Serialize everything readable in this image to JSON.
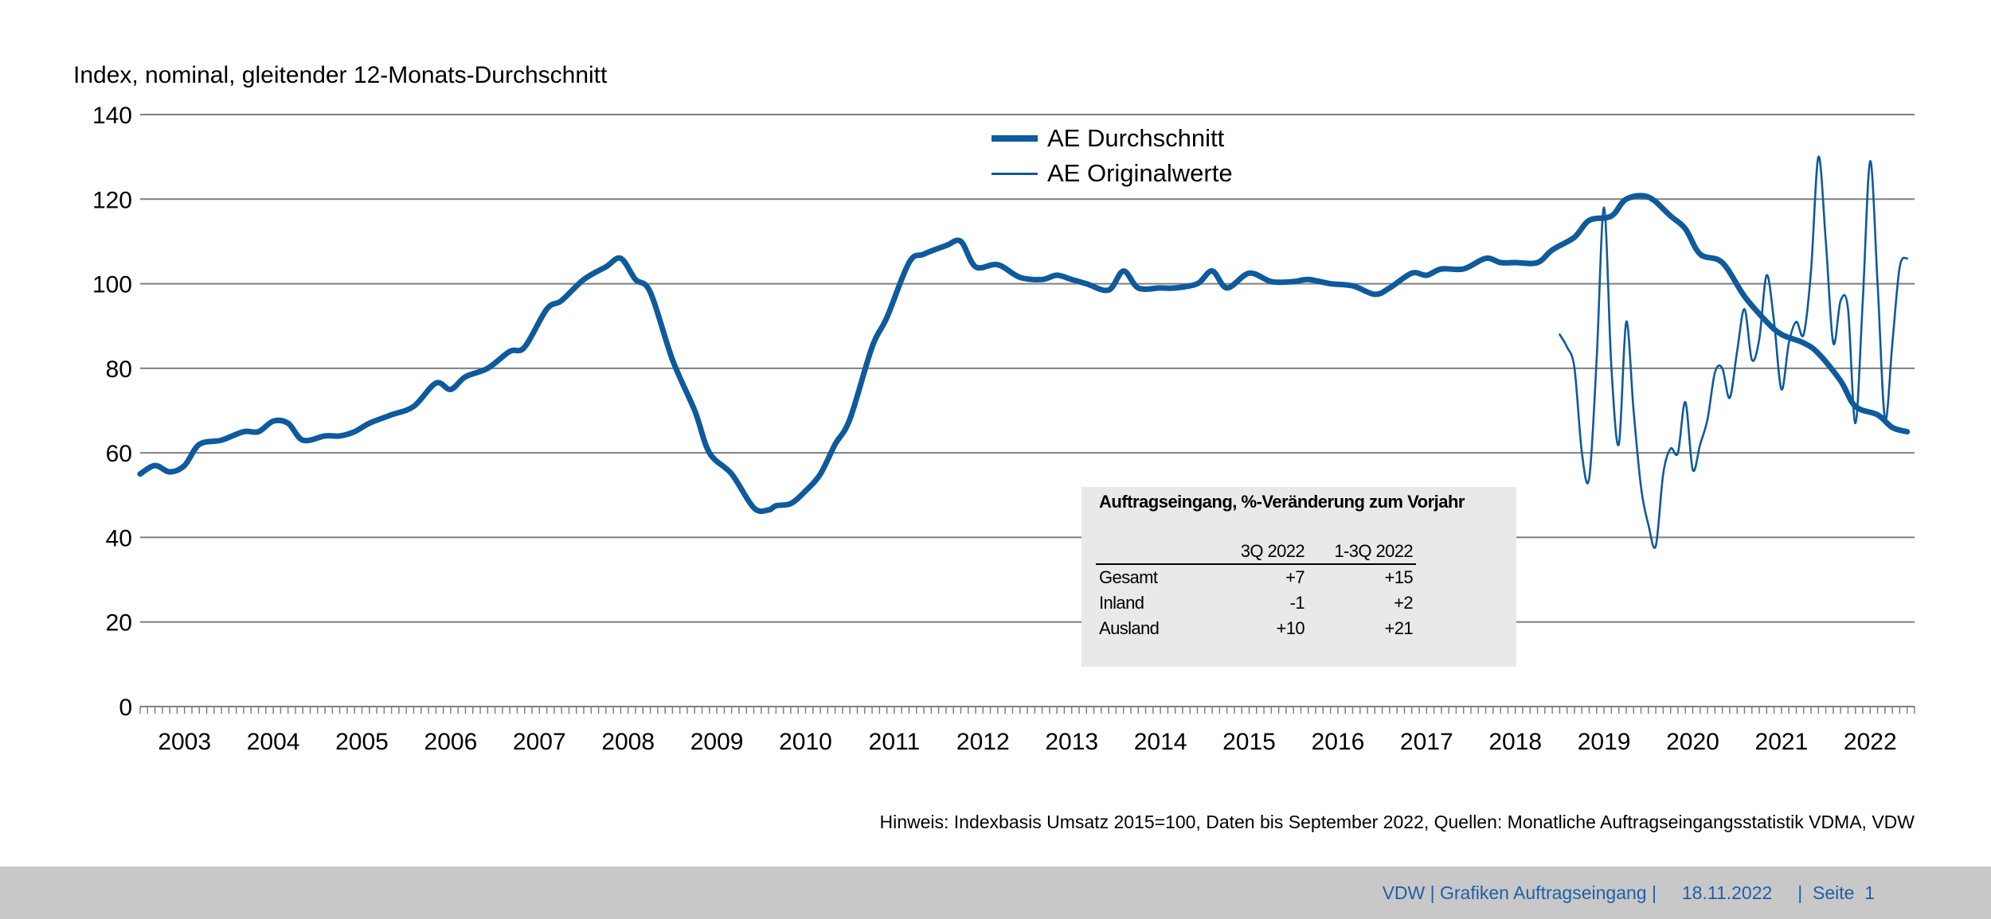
{
  "chart_data": {
    "type": "line",
    "title": "",
    "ylabel": "Index, nominal, gleitender 12-Monats-Durchschnitt",
    "xlabel": "",
    "ylim": [
      0,
      140
    ],
    "yticks": [
      0,
      20,
      40,
      60,
      80,
      100,
      120,
      140
    ],
    "x_tick_labels": [
      "2003",
      "2004",
      "2005",
      "2006",
      "2007",
      "2008",
      "2009",
      "2010",
      "2011",
      "2012",
      "2013",
      "2014",
      "2015",
      "2016",
      "2017",
      "2018",
      "2019",
      "2020",
      "2021",
      "2022"
    ],
    "x_range": [
      "2003-01",
      "2022-12"
    ],
    "grid": "horizontal",
    "legend_position": "top-center",
    "series": [
      {
        "name": "AE Durchschnitt",
        "style": "thick",
        "points": [
          [
            "2003-01",
            55
          ],
          [
            "2003-03",
            57
          ],
          [
            "2003-05",
            55.5
          ],
          [
            "2003-07",
            57
          ],
          [
            "2003-09",
            62
          ],
          [
            "2003-12",
            63
          ],
          [
            "2004-03",
            65
          ],
          [
            "2004-05",
            65
          ],
          [
            "2004-07",
            67.5
          ],
          [
            "2004-09",
            67
          ],
          [
            "2004-11",
            63
          ],
          [
            "2005-02",
            64
          ],
          [
            "2005-04",
            64
          ],
          [
            "2005-06",
            65
          ],
          [
            "2005-08",
            67
          ],
          [
            "2005-11",
            69
          ],
          [
            "2006-02",
            71
          ],
          [
            "2006-05",
            76.5
          ],
          [
            "2006-07",
            75
          ],
          [
            "2006-09",
            78
          ],
          [
            "2006-12",
            80
          ],
          [
            "2007-03",
            84
          ],
          [
            "2007-05",
            85
          ],
          [
            "2007-08",
            94
          ],
          [
            "2007-10",
            96
          ],
          [
            "2008-01",
            101
          ],
          [
            "2008-04",
            104
          ],
          [
            "2008-06",
            106
          ],
          [
            "2008-08",
            101
          ],
          [
            "2008-10",
            98
          ],
          [
            "2009-01",
            82
          ],
          [
            "2009-04",
            70
          ],
          [
            "2009-06",
            60
          ],
          [
            "2009-09",
            55
          ],
          [
            "2009-12",
            47
          ],
          [
            "2010-02",
            46.5
          ],
          [
            "2010-03",
            47.5
          ],
          [
            "2010-05",
            48
          ],
          [
            "2010-07",
            51
          ],
          [
            "2010-09",
            55
          ],
          [
            "2010-11",
            62
          ],
          [
            "2011-01",
            68
          ],
          [
            "2011-04",
            85
          ],
          [
            "2011-06",
            92
          ],
          [
            "2011-09",
            105
          ],
          [
            "2011-11",
            107
          ],
          [
            "2012-02",
            109
          ],
          [
            "2012-04",
            110
          ],
          [
            "2012-06",
            104
          ],
          [
            "2012-09",
            104.5
          ],
          [
            "2012-12",
            101.5
          ],
          [
            "2013-03",
            101
          ],
          [
            "2013-05",
            102
          ],
          [
            "2013-07",
            101
          ],
          [
            "2013-09",
            100
          ],
          [
            "2013-12",
            98.5
          ],
          [
            "2014-02",
            103
          ],
          [
            "2014-04",
            99
          ],
          [
            "2014-07",
            99
          ],
          [
            "2014-09",
            99
          ],
          [
            "2014-12",
            100
          ],
          [
            "2015-02",
            103
          ],
          [
            "2015-04",
            99
          ],
          [
            "2015-07",
            102.5
          ],
          [
            "2015-10",
            100.5
          ],
          [
            "2016-01",
            100.5
          ],
          [
            "2016-03",
            101
          ],
          [
            "2016-06",
            100
          ],
          [
            "2016-09",
            99.5
          ],
          [
            "2016-12",
            97.5
          ],
          [
            "2017-02",
            99
          ],
          [
            "2017-05",
            102.5
          ],
          [
            "2017-07",
            102
          ],
          [
            "2017-09",
            103.5
          ],
          [
            "2017-12",
            103.5
          ],
          [
            "2018-03",
            106
          ],
          [
            "2018-05",
            105
          ],
          [
            "2018-07",
            105
          ],
          [
            "2018-10",
            105
          ],
          [
            "2018-12",
            108
          ],
          [
            "2019-03",
            111
          ],
          [
            "2019-05",
            115
          ],
          [
            "2019-08",
            116
          ],
          [
            "2019-10",
            120
          ],
          [
            "2020-01",
            120.5
          ],
          [
            "2020-04",
            116
          ],
          [
            "2020-06",
            113
          ],
          [
            "2020-08",
            107
          ],
          [
            "2020-11",
            105
          ],
          [
            "2021-02",
            97
          ],
          [
            "2021-05",
            91
          ],
          [
            "2021-07",
            88
          ],
          [
            "2021-10",
            86
          ],
          [
            "2021-12",
            83.5
          ],
          [
            "2022-03",
            77
          ],
          [
            "2022-05",
            71
          ],
          [
            "2022-08",
            69
          ],
          [
            "2022-10",
            66
          ],
          [
            "2022-12",
            65
          ]
        ]
      },
      {
        "name": "AE Originalwerte",
        "style": "thin",
        "points": [
          [
            "2019-01",
            88
          ],
          [
            "2019-02",
            85
          ],
          [
            "2019-03",
            80
          ],
          [
            "2019-04",
            60
          ],
          [
            "2019-05",
            54
          ],
          [
            "2019-06",
            82
          ],
          [
            "2019-07",
            118
          ],
          [
            "2019-08",
            80
          ],
          [
            "2019-09",
            62
          ],
          [
            "2019-10",
            91
          ],
          [
            "2019-11",
            70
          ],
          [
            "2019-12",
            52
          ],
          [
            "2020-01",
            43
          ],
          [
            "2020-02",
            38
          ],
          [
            "2020-03",
            55
          ],
          [
            "2020-04",
            61
          ],
          [
            "2020-05",
            60
          ],
          [
            "2020-06",
            72
          ],
          [
            "2020-07",
            56
          ],
          [
            "2020-08",
            62
          ],
          [
            "2020-09",
            68
          ],
          [
            "2020-10",
            79
          ],
          [
            "2020-11",
            80
          ],
          [
            "2020-12",
            73
          ],
          [
            "2021-01",
            84
          ],
          [
            "2021-02",
            94
          ],
          [
            "2021-03",
            82
          ],
          [
            "2021-04",
            87
          ],
          [
            "2021-05",
            102
          ],
          [
            "2021-06",
            91
          ],
          [
            "2021-07",
            75
          ],
          [
            "2021-08",
            86
          ],
          [
            "2021-09",
            91
          ],
          [
            "2021-10",
            88
          ],
          [
            "2021-11",
            103
          ],
          [
            "2021-12",
            130
          ],
          [
            "2022-01",
            110
          ],
          [
            "2022-02",
            86
          ],
          [
            "2022-03",
            96
          ],
          [
            "2022-04",
            94
          ],
          [
            "2022-05",
            67
          ],
          [
            "2022-06",
            96
          ],
          [
            "2022-07",
            129
          ],
          [
            "2022-08",
            100
          ],
          [
            "2022-09",
            68
          ],
          [
            "2022-10",
            86
          ],
          [
            "2022-11",
            104
          ],
          [
            "2022-12",
            106
          ]
        ]
      }
    ],
    "color": "#0e5a9c"
  },
  "legend": {
    "items": [
      {
        "label": "AE Durchschnitt"
      },
      {
        "label": "AE Originalwerte"
      }
    ]
  },
  "infobox": {
    "title": "Auftragseingang, %-Veränderung zum Vorjahr",
    "headers": [
      "",
      "3Q 2022",
      "1-3Q 2022"
    ],
    "rows": [
      [
        "Gesamt",
        "+7",
        "+15"
      ],
      [
        "Inland",
        "-1",
        "+2"
      ],
      [
        "Ausland",
        "+10",
        "+21"
      ]
    ]
  },
  "note": "Hinweis: Indexbasis Umsatz 2015=100, Daten bis September 2022, Quellen: Monatliche Auftragseingangsstatistik VDMA, VDW",
  "footer": {
    "text": "VDW | Grafiken Auftragseingang |     18.11.2022     |  Seite  1"
  }
}
